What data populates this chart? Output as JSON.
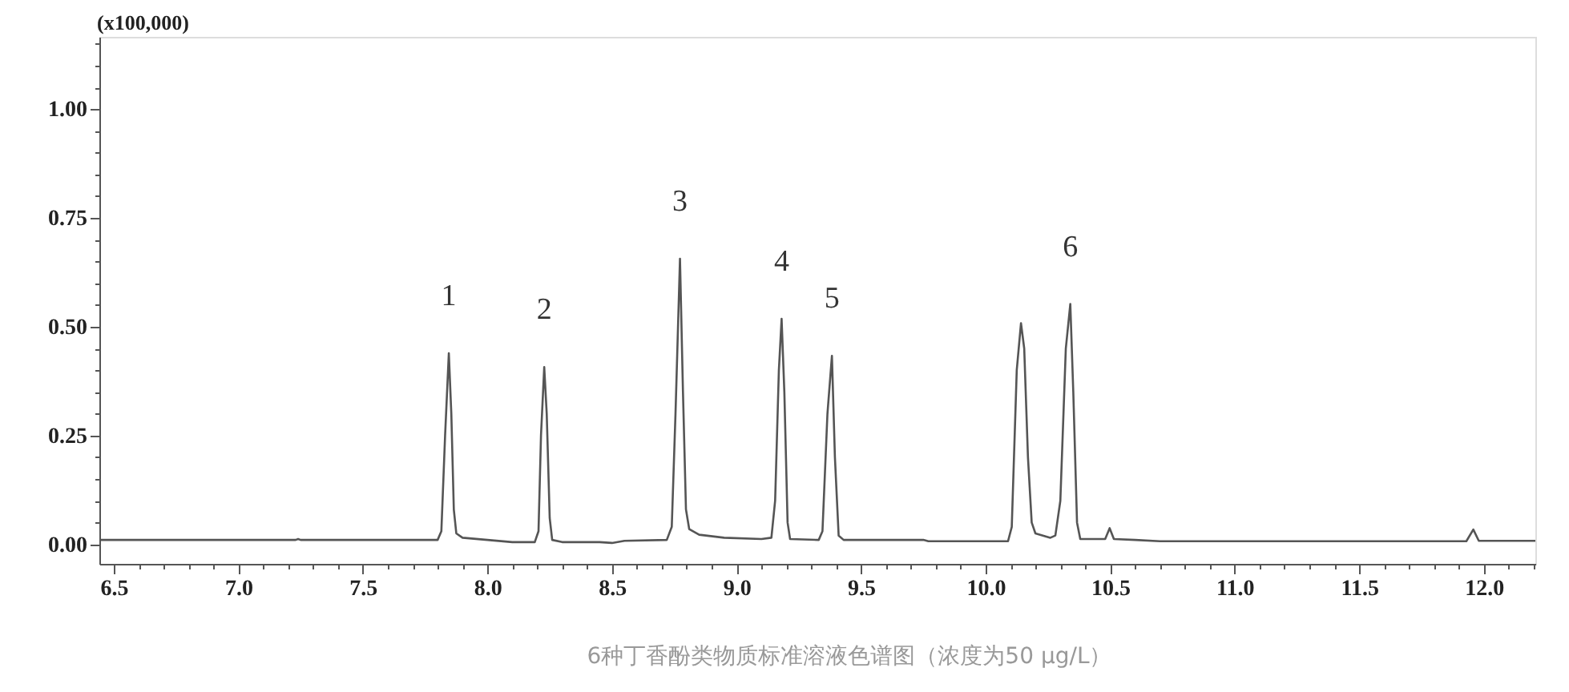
{
  "chart_data": {
    "type": "line",
    "ylabel": "(x100,000)",
    "xlim": [
      6.442,
      12.207
    ],
    "ylim": [
      -0.045,
      1.166
    ],
    "xticks": [
      6.5,
      {
        "value": 6.6,
        "label": null
      },
      {
        "value": 6.7,
        "label": null
      },
      {
        "value": 6.8,
        "label": null
      },
      {
        "value": 6.9,
        "label": null
      },
      {
        "value": 7,
        "label": "7.0"
      },
      {
        "value": 7.1,
        "label": null
      },
      {
        "value": 7.2,
        "label": null
      },
      {
        "value": 7.3,
        "label": null
      },
      {
        "value": 7.4,
        "label": null
      },
      7.5,
      {
        "value": 7.6,
        "label": null
      },
      {
        "value": 7.7,
        "label": null
      },
      {
        "value": 7.8,
        "label": null
      },
      {
        "value": 7.9,
        "label": null
      },
      {
        "value": 8,
        "label": "8.0"
      },
      {
        "value": 8.1,
        "label": null
      },
      {
        "value": 8.2,
        "label": null
      },
      {
        "value": 8.3,
        "label": null
      },
      {
        "value": 8.4,
        "label": null
      },
      8.5,
      {
        "value": 8.6,
        "label": null
      },
      {
        "value": 8.7,
        "label": null
      },
      {
        "value": 8.8,
        "label": null
      },
      {
        "value": 8.9,
        "label": null
      },
      {
        "value": 9,
        "label": "9.0"
      },
      {
        "value": 9.1,
        "label": null
      },
      {
        "value": 9.2,
        "label": null
      },
      {
        "value": 9.3,
        "label": null
      },
      {
        "value": 9.4,
        "label": null
      },
      9.5,
      {
        "value": 9.6,
        "label": null
      },
      {
        "value": 9.7,
        "label": null
      },
      {
        "value": 9.8,
        "label": null
      },
      {
        "value": 9.9,
        "label": null
      },
      {
        "value": 10,
        "label": "10.0"
      },
      {
        "value": 10.1,
        "label": null
      },
      {
        "value": 10.2,
        "label": null
      },
      {
        "value": 10.3,
        "label": null
      },
      {
        "value": 10.4,
        "label": null
      },
      10.5,
      {
        "value": 10.6,
        "label": null
      },
      {
        "value": 10.7,
        "label": null
      },
      {
        "value": 10.8,
        "label": null
      },
      {
        "value": 10.9,
        "label": null
      },
      {
        "value": 11,
        "label": "11.0"
      },
      {
        "value": 11.1,
        "label": null
      },
      {
        "value": 11.2,
        "label": null
      },
      {
        "value": 11.3,
        "label": null
      },
      {
        "value": 11.4,
        "label": null
      },
      11.5,
      {
        "value": 11.6,
        "label": null
      },
      {
        "value": 11.7,
        "label": null
      },
      {
        "value": 11.8,
        "label": null
      },
      {
        "value": 11.9,
        "label": null
      },
      {
        "value": 12,
        "label": "12.0"
      },
      {
        "value": 12.1,
        "label": null
      },
      {
        "value": 12.2,
        "label": null
      }
    ],
    "yticks": [
      {
        "value": 0,
        "label": "0.00"
      },
      {
        "value": 0.05,
        "label": null
      },
      {
        "value": 0.1,
        "label": null
      },
      {
        "value": 0.15,
        "label": null
      },
      {
        "value": 0.2,
        "label": null
      },
      0.25,
      {
        "value": 0.3,
        "label": null
      },
      {
        "value": 0.35,
        "label": null
      },
      {
        "value": 0.4,
        "label": null
      },
      {
        "value": 0.45,
        "label": null
      },
      {
        "value": 0.5,
        "label": "0.50"
      },
      {
        "value": 0.55,
        "label": null
      },
      {
        "value": 0.6,
        "label": null
      },
      {
        "value": 0.65,
        "label": null
      },
      {
        "value": 0.7,
        "label": null
      },
      0.75,
      {
        "value": 0.8,
        "label": null
      },
      {
        "value": 0.85,
        "label": null
      },
      {
        "value": 0.9,
        "label": null
      },
      {
        "value": 0.95,
        "label": null
      },
      {
        "value": 1,
        "label": "1.00"
      },
      {
        "value": 1.05,
        "label": null
      },
      {
        "value": 1.1,
        "label": null
      },
      {
        "value": 1.15,
        "label": null
      }
    ],
    "grid": false,
    "series": [
      {
        "color": "#555555",
        "x": [
          6.442,
          7.23,
          7.24,
          7.25,
          7.8,
          7.815,
          7.83,
          7.845,
          7.855,
          7.865,
          7.875,
          7.9,
          8.0,
          8.1,
          8.19,
          8.205,
          8.215,
          8.228,
          8.238,
          8.25,
          8.26,
          8.3,
          8.45,
          8.5,
          8.55,
          8.72,
          8.74,
          8.755,
          8.773,
          8.785,
          8.797,
          8.81,
          8.85,
          8.95,
          9.1,
          9.14,
          9.155,
          9.17,
          9.181,
          9.192,
          9.205,
          9.215,
          9.33,
          9.345,
          9.365,
          9.383,
          9.395,
          9.41,
          9.43,
          9.75,
          9.77,
          10.09,
          10.105,
          10.125,
          10.142,
          10.155,
          10.17,
          10.185,
          10.2,
          10.26,
          10.28,
          10.3,
          10.322,
          10.34,
          10.352,
          10.367,
          10.38,
          10.48,
          10.498,
          10.515,
          10.6,
          10.7,
          11.93,
          11.958,
          11.98,
          12.207
        ],
        "values": [
          0.01,
          0.01,
          0.012,
          0.01,
          0.01,
          0.03,
          0.25,
          0.439,
          0.3,
          0.08,
          0.025,
          0.015,
          0.01,
          0.005,
          0.005,
          0.03,
          0.25,
          0.407,
          0.3,
          0.06,
          0.01,
          0.005,
          0.005,
          0.003,
          0.008,
          0.01,
          0.04,
          0.3,
          0.656,
          0.35,
          0.08,
          0.035,
          0.022,
          0.015,
          0.012,
          0.015,
          0.1,
          0.4,
          0.518,
          0.35,
          0.05,
          0.012,
          0.01,
          0.03,
          0.3,
          0.433,
          0.2,
          0.02,
          0.01,
          0.01,
          0.007,
          0.007,
          0.04,
          0.4,
          0.508,
          0.45,
          0.2,
          0.05,
          0.025,
          0.015,
          0.02,
          0.1,
          0.45,
          0.552,
          0.35,
          0.05,
          0.012,
          0.012,
          0.037,
          0.012,
          0.01,
          0.007,
          0.007,
          0.034,
          0.008,
          0.008
        ]
      }
    ],
    "annotations": [
      {
        "text": "1",
        "x": 7.845,
        "y": 0.439
      },
      {
        "text": "2",
        "x": 8.228,
        "y": 0.407
      },
      {
        "text": "3",
        "x": 8.773,
        "y": 0.656
      },
      {
        "text": "4",
        "x": 9.181,
        "y": 0.518
      },
      {
        "text": "5",
        "x": 9.383,
        "y": 0.433
      },
      {
        "text": "6",
        "x": 10.34,
        "y": 0.552
      },
      "6种丁香酚类物质标准溶液色谱图（浓度为50 μg/L）"
    ]
  }
}
